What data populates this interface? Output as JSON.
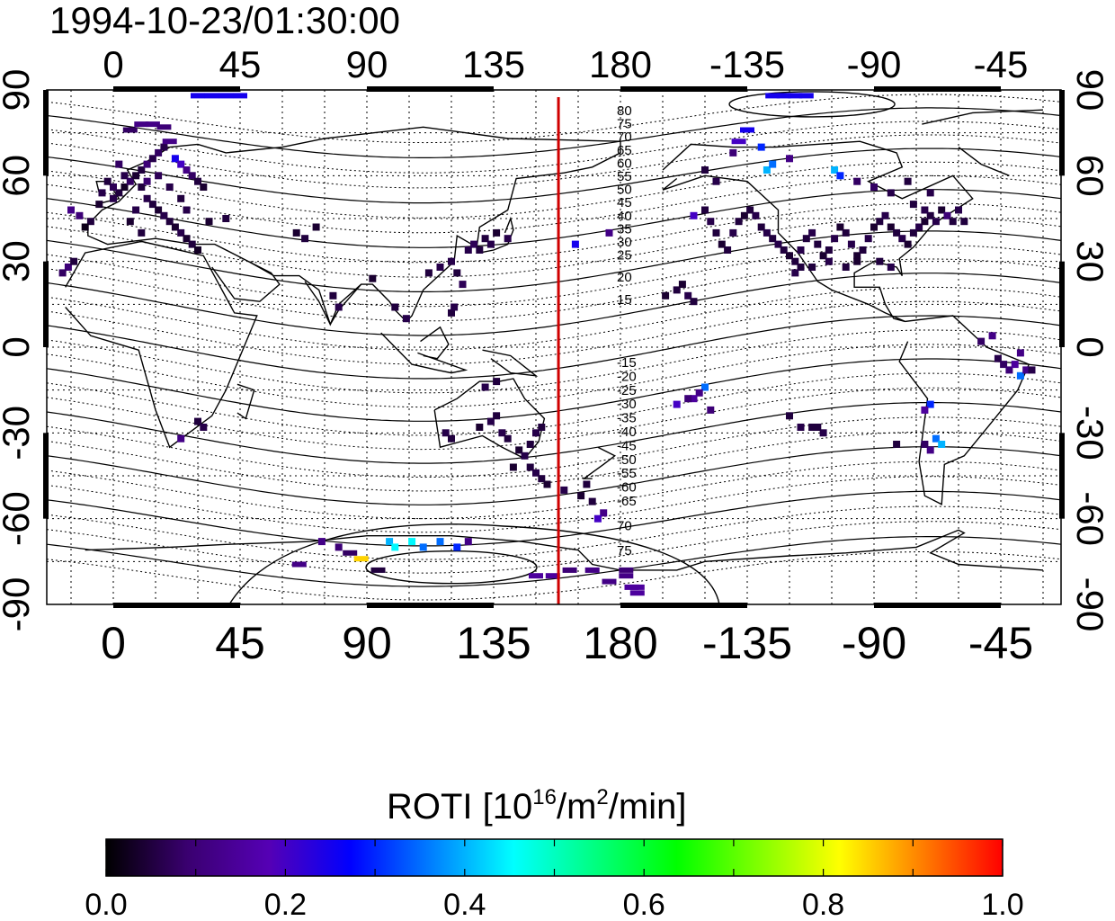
{
  "title": "1994-10-23/01:30:00",
  "map": {
    "lon_ticks": [
      "0",
      "45",
      "90",
      "135",
      "180",
      "-135",
      "-90",
      "-45"
    ],
    "lat_ticks": [
      "90",
      "60",
      "30",
      "0",
      "-30",
      "-60",
      "-90"
    ],
    "meridian_longitude": 158,
    "north_contour_labels": [
      "80",
      "75",
      "70",
      "65",
      "60",
      "55",
      "50",
      "45",
      "40",
      "35",
      "30",
      "25",
      "20",
      "15"
    ],
    "south_contour_labels": [
      "-15",
      "-20",
      "-25",
      "-30",
      "-35",
      "-40",
      "-45",
      "-50",
      "-55",
      "-60",
      "-65",
      "70",
      "75"
    ]
  },
  "colorbar": {
    "title_main": "ROTI  [10",
    "title_sup1": "16",
    "title_mid": "/m",
    "title_sup2": "2",
    "title_end": "/min]",
    "tick_labels": [
      "0.0",
      "0.2",
      "0.4",
      "0.6",
      "0.8",
      "1.0"
    ],
    "min": 0.0,
    "max": 1.0,
    "colors": [
      "#000000",
      "#3a0070",
      "#5500b5",
      "#0000ff",
      "#0080ff",
      "#00ffff",
      "#00ff80",
      "#00ff00",
      "#80ff00",
      "#ffff00",
      "#ff8000",
      "#ff0000"
    ]
  },
  "samples": [
    [
      -15,
      48,
      0.12
    ],
    [
      -12,
      46,
      0.1
    ],
    [
      -8,
      44,
      0.05
    ],
    [
      -10,
      42,
      0.02
    ],
    [
      -5,
      50,
      0.04
    ],
    [
      0,
      52,
      0.06
    ],
    [
      2,
      54,
      0.05
    ],
    [
      4,
      56,
      0.03
    ],
    [
      6,
      58,
      0.08
    ],
    [
      8,
      60,
      0.04
    ],
    [
      10,
      62,
      0.05
    ],
    [
      12,
      64,
      0.1
    ],
    [
      14,
      66,
      0.06
    ],
    [
      16,
      68,
      0.08
    ],
    [
      18,
      70,
      0.06
    ],
    [
      20,
      72,
      0.12
    ],
    [
      10,
      78,
      0.12
    ],
    [
      14,
      78,
      0.12
    ],
    [
      18,
      77,
      0.1
    ],
    [
      6,
      76,
      0.08
    ],
    [
      22,
      66,
      0.25
    ],
    [
      24,
      64,
      0.2
    ],
    [
      26,
      62,
      0.12
    ],
    [
      28,
      60,
      0.08
    ],
    [
      30,
      58,
      0.05
    ],
    [
      32,
      56,
      0.04
    ],
    [
      12,
      52,
      0.06
    ],
    [
      14,
      50,
      0.05
    ],
    [
      16,
      48,
      0.04
    ],
    [
      18,
      46,
      0.06
    ],
    [
      20,
      44,
      0.05
    ],
    [
      22,
      42,
      0.04
    ],
    [
      24,
      40,
      0.06
    ],
    [
      26,
      38,
      0.04
    ],
    [
      28,
      36,
      0.05
    ],
    [
      30,
      34,
      0.03
    ],
    [
      6,
      44,
      0.04
    ],
    [
      8,
      48,
      0.06
    ],
    [
      10,
      56,
      0.05
    ],
    [
      4,
      60,
      0.06
    ],
    [
      2,
      64,
      0.08
    ],
    [
      0,
      56,
      0.07
    ],
    [
      -2,
      58,
      0.05
    ],
    [
      -4,
      54,
      0.06
    ],
    [
      12,
      58,
      0.09
    ],
    [
      16,
      60,
      0.07
    ],
    [
      20,
      56,
      0.06
    ],
    [
      24,
      52,
      0.05
    ],
    [
      26,
      48,
      0.06
    ],
    [
      10,
      40,
      0.05
    ],
    [
      34,
      44,
      0.04
    ],
    [
      40,
      45,
      0.05
    ],
    [
      -16,
      28,
      0.1
    ],
    [
      -14,
      30,
      0.05
    ],
    [
      -18,
      26,
      0.08
    ],
    [
      30,
      88,
      0.25
    ],
    [
      35,
      88,
      0.25
    ],
    [
      40,
      88,
      0.25
    ],
    [
      45,
      88,
      0.25
    ],
    [
      65,
      40,
      0.04
    ],
    [
      68,
      38,
      0.05
    ],
    [
      72,
      42,
      0.04
    ],
    [
      78,
      18,
      0.05
    ],
    [
      80,
      14,
      0.06
    ],
    [
      92,
      24,
      0.04
    ],
    [
      100,
      14,
      0.05
    ],
    [
      104,
      10,
      0.06
    ],
    [
      112,
      26,
      0.05
    ],
    [
      116,
      28,
      0.06
    ],
    [
      120,
      30,
      0.06
    ],
    [
      122,
      26,
      0.05
    ],
    [
      126,
      34,
      0.06
    ],
    [
      128,
      36,
      0.07
    ],
    [
      130,
      34,
      0.05
    ],
    [
      132,
      38,
      0.05
    ],
    [
      134,
      36,
      0.06
    ],
    [
      136,
      40,
      0.04
    ],
    [
      140,
      38,
      0.06
    ],
    [
      124,
      22,
      0.07
    ],
    [
      120,
      12,
      0.05
    ],
    [
      121,
      14,
      0.06
    ],
    [
      30,
      -26,
      0.05
    ],
    [
      32,
      -28,
      0.06
    ],
    [
      24,
      -32,
      0.12
    ],
    [
      118,
      -30,
      0.06
    ],
    [
      120,
      -32,
      0.05
    ],
    [
      130,
      -28,
      0.04
    ],
    [
      134,
      -26,
      0.06
    ],
    [
      136,
      -24,
      0.05
    ],
    [
      138,
      -30,
      0.06
    ],
    [
      140,
      -32,
      0.05
    ],
    [
      144,
      -36,
      0.04
    ],
    [
      146,
      -38,
      0.06
    ],
    [
      148,
      -34,
      0.05
    ],
    [
      150,
      -30,
      0.06
    ],
    [
      152,
      -28,
      0.05
    ],
    [
      132,
      -14,
      0.06
    ],
    [
      136,
      -12,
      0.05
    ],
    [
      142,
      -42,
      0.04
    ],
    [
      148,
      -42,
      0.05
    ],
    [
      150,
      -44,
      0.06
    ],
    [
      152,
      -46,
      0.05
    ],
    [
      154,
      -48,
      0.04
    ],
    [
      160,
      -50,
      0.06
    ],
    [
      166,
      -52,
      0.04
    ],
    [
      168,
      -48,
      0.05
    ],
    [
      170,
      -54,
      0.05
    ],
    [
      174,
      -58,
      0.12
    ],
    [
      172,
      -60,
      0.2
    ],
    [
      164,
      36,
      0.25
    ],
    [
      176,
      40,
      0.12
    ],
    [
      74,
      -68,
      0.12
    ],
    [
      80,
      -70,
      0.1
    ],
    [
      84,
      -72,
      0.08
    ],
    [
      88,
      -74,
      0.85
    ],
    [
      98,
      -68,
      0.4
    ],
    [
      100,
      -70,
      0.45
    ],
    [
      106,
      -68,
      0.45
    ],
    [
      110,
      -70,
      0.35
    ],
    [
      116,
      -68,
      0.35
    ],
    [
      122,
      -70,
      0.3
    ],
    [
      126,
      -68,
      0.12
    ],
    [
      66,
      -76,
      0.12
    ],
    [
      94,
      -78,
      0.05
    ],
    [
      150,
      -80,
      0.15
    ],
    [
      156,
      -80,
      0.15
    ],
    [
      162,
      -78,
      0.1
    ],
    [
      170,
      -78,
      0.12
    ],
    [
      176,
      -82,
      0.12
    ],
    [
      182,
      -80,
      0.12
    ],
    [
      186,
      -84,
      0.15
    ],
    [
      -178,
      -78,
      0.1
    ],
    [
      -176,
      -84,
      0.15
    ],
    [
      -174,
      -86,
      0.15
    ],
    [
      -128,
      62,
      0.4
    ],
    [
      -126,
      64,
      0.35
    ],
    [
      -130,
      70,
      0.3
    ],
    [
      -120,
      66,
      0.12
    ],
    [
      -104,
      62,
      0.4
    ],
    [
      -102,
      60,
      0.3
    ],
    [
      -96,
      58,
      0.08
    ],
    [
      -140,
      68,
      0.1
    ],
    [
      -138,
      72,
      0.2
    ],
    [
      -135,
      76,
      0.25
    ],
    [
      -126,
      88,
      0.25
    ],
    [
      -122,
      88,
      0.25
    ],
    [
      -118,
      88,
      0.25
    ],
    [
      -114,
      88,
      0.25
    ],
    [
      -150,
      48,
      0.05
    ],
    [
      -148,
      44,
      0.06
    ],
    [
      -146,
      40,
      0.05
    ],
    [
      -144,
      36,
      0.04
    ],
    [
      -142,
      34,
      0.05
    ],
    [
      -140,
      40,
      0.06
    ],
    [
      -138,
      44,
      0.05
    ],
    [
      -136,
      46,
      0.04
    ],
    [
      -134,
      48,
      0.05
    ],
    [
      -132,
      46,
      0.06
    ],
    [
      -130,
      42,
      0.05
    ],
    [
      -128,
      40,
      0.06
    ],
    [
      -126,
      38,
      0.05
    ],
    [
      -124,
      36,
      0.06
    ],
    [
      -122,
      34,
      0.05
    ],
    [
      -120,
      32,
      0.04
    ],
    [
      -118,
      30,
      0.05
    ],
    [
      -116,
      34,
      0.06
    ],
    [
      -114,
      38,
      0.05
    ],
    [
      -112,
      40,
      0.06
    ],
    [
      -110,
      36,
      0.05
    ],
    [
      -108,
      32,
      0.04
    ],
    [
      -106,
      34,
      0.05
    ],
    [
      -104,
      38,
      0.06
    ],
    [
      -102,
      42,
      0.04
    ],
    [
      -100,
      40,
      0.05
    ],
    [
      -98,
      36,
      0.06
    ],
    [
      -96,
      32,
      0.04
    ],
    [
      -94,
      34,
      0.05
    ],
    [
      -92,
      38,
      0.06
    ],
    [
      -90,
      42,
      0.04
    ],
    [
      -88,
      44,
      0.05
    ],
    [
      -86,
      46,
      0.06
    ],
    [
      -84,
      42,
      0.04
    ],
    [
      -82,
      40,
      0.05
    ],
    [
      -80,
      38,
      0.06
    ],
    [
      -78,
      36,
      0.04
    ],
    [
      -76,
      40,
      0.05
    ],
    [
      -74,
      42,
      0.06
    ],
    [
      -72,
      44,
      0.04
    ],
    [
      -70,
      46,
      0.05
    ],
    [
      -68,
      44,
      0.06
    ],
    [
      -66,
      48,
      0.04
    ],
    [
      -64,
      46,
      0.1
    ],
    [
      -62,
      44,
      0.05
    ],
    [
      -60,
      48,
      0.06
    ],
    [
      -58,
      44,
      0.05
    ],
    [
      -116,
      28,
      0.05
    ],
    [
      -118,
      26,
      0.06
    ],
    [
      -112,
      28,
      0.05
    ],
    [
      -106,
      30,
      0.06
    ],
    [
      -100,
      28,
      0.05
    ],
    [
      -96,
      30,
      0.04
    ],
    [
      -88,
      30,
      0.05
    ],
    [
      -84,
      28,
      0.06
    ],
    [
      -150,
      62,
      0.05
    ],
    [
      -146,
      58,
      0.06
    ],
    [
      -90,
      56,
      0.08
    ],
    [
      -84,
      54,
      0.06
    ],
    [
      -78,
      58,
      0.05
    ],
    [
      -70,
      54,
      0.06
    ],
    [
      -76,
      50,
      0.05
    ],
    [
      -72,
      48,
      0.06
    ],
    [
      -154,
      46,
      0.2
    ],
    [
      -160,
      20,
      0.05
    ],
    [
      -158,
      22,
      0.04
    ],
    [
      -156,
      18,
      0.06
    ],
    [
      -154,
      16,
      0.05
    ],
    [
      -164,
      18,
      0.04
    ],
    [
      -150,
      -14,
      0.35
    ],
    [
      -152,
      -16,
      0.12
    ],
    [
      -154,
      -18,
      0.15
    ],
    [
      -156,
      -18,
      0.1
    ],
    [
      -160,
      -20,
      0.2
    ],
    [
      -148,
      -22,
      0.1
    ],
    [
      -120,
      -24,
      0.05
    ],
    [
      -116,
      -28,
      0.06
    ],
    [
      -112,
      -28,
      0.05
    ],
    [
      -108,
      -30,
      0.06
    ],
    [
      -110,
      -28,
      0.05
    ],
    [
      -82,
      -34,
      0.05
    ],
    [
      -48,
      4,
      0.12
    ],
    [
      -46,
      -4,
      0.06
    ],
    [
      -44,
      -6,
      0.08
    ],
    [
      -42,
      -8,
      0.1
    ],
    [
      -40,
      -6,
      0.15
    ],
    [
      -38,
      -10,
      0.35
    ],
    [
      -36,
      -8,
      0.12
    ],
    [
      -34,
      -8,
      0.06
    ],
    [
      -38,
      -2,
      0.12
    ],
    [
      -52,
      2,
      0.08
    ],
    [
      -70,
      -20,
      0.3
    ],
    [
      -72,
      -22,
      0.15
    ],
    [
      -68,
      -32,
      0.35
    ],
    [
      -66,
      -34,
      0.4
    ],
    [
      -70,
      -36,
      0.12
    ],
    [
      -72,
      -34,
      0.08
    ]
  ]
}
